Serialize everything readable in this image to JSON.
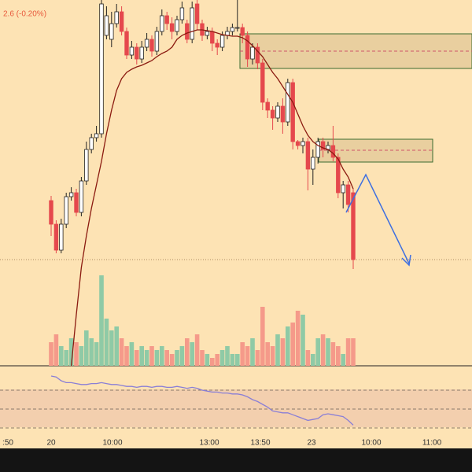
{
  "chart_data": {
    "type": "candlestick",
    "title": "2.6 (-0.20%)",
    "x_labels": [
      ":50",
      "20",
      "10:00",
      "13:00",
      "13:50",
      "23",
      "10:00",
      "11:00"
    ],
    "up_color": "#ffffff",
    "down_color": "#e5484d",
    "ma_color": "#8b1a10",
    "rsi_color": "#8a7fd6",
    "volume_up_color": "#8fcaa6",
    "volume_down_color": "#f59a8a",
    "ylim": [
      0,
      470
    ],
    "volume_ylim": [
      0,
      120
    ],
    "rsi_ylim": [
      0,
      100
    ],
    "rsi_lines": [
      30,
      50,
      70
    ],
    "open": [
      215,
      185,
      152,
      185,
      220,
      225,
      200,
      240,
      280,
      295,
      300,
      425,
      420,
      440,
      455,
      430,
      400,
      410,
      395,
      410,
      420,
      405,
      430,
      450,
      440,
      430,
      445,
      440,
      420,
      465,
      440,
      425,
      430,
      415,
      410,
      425,
      430,
      435,
      435,
      425,
      395,
      410,
      390,
      340,
      330,
      320,
      335,
      315,
      365,
      290,
      285,
      290,
      255,
      270,
      290,
      280,
      285,
      270,
      225,
      235,
      225
    ],
    "high": [
      221,
      190,
      192,
      225,
      232,
      230,
      245,
      290,
      300,
      310,
      470,
      462,
      455,
      465,
      462,
      435,
      418,
      415,
      418,
      428,
      425,
      436,
      458,
      455,
      448,
      450,
      468,
      445,
      468,
      470,
      445,
      436,
      435,
      420,
      430,
      436,
      440,
      470,
      440,
      430,
      415,
      415,
      395,
      345,
      335,
      340,
      345,
      370,
      370,
      292,
      295,
      295,
      280,
      295,
      295,
      290,
      310,
      275,
      240,
      240,
      230
    ],
    "low": [
      170,
      148,
      148,
      180,
      215,
      195,
      195,
      235,
      275,
      290,
      295,
      420,
      410,
      435,
      425,
      395,
      395,
      388,
      390,
      405,
      398,
      400,
      425,
      432,
      420,
      425,
      440,
      415,
      415,
      432,
      418,
      420,
      405,
      400,
      405,
      420,
      425,
      430,
      415,
      385,
      388,
      382,
      330,
      320,
      305,
      315,
      300,
      310,
      280,
      280,
      275,
      228,
      235,
      262,
      270,
      275,
      265,
      218,
      205,
      200,
      128
    ],
    "close": [
      185,
      152,
      185,
      220,
      225,
      200,
      240,
      280,
      295,
      300,
      465,
      450,
      440,
      455,
      430,
      400,
      410,
      395,
      410,
      420,
      405,
      430,
      450,
      440,
      430,
      445,
      460,
      420,
      460,
      440,
      425,
      430,
      415,
      410,
      425,
      430,
      435,
      435,
      425,
      395,
      410,
      390,
      340,
      330,
      320,
      335,
      315,
      365,
      290,
      285,
      290,
      255,
      270,
      290,
      280,
      285,
      270,
      225,
      235,
      210,
      140
    ],
    "ma": [
      null,
      null,
      null,
      null,
      5,
      70,
      130,
      170,
      205,
      235,
      265,
      300,
      330,
      355,
      370,
      378,
      382,
      385,
      387,
      390,
      393,
      398,
      402,
      405,
      410,
      420,
      425,
      428,
      430,
      432,
      432,
      431,
      430,
      428,
      426,
      425,
      424,
      424,
      422,
      418,
      412,
      405,
      398,
      388,
      378,
      370,
      360,
      350,
      340,
      325,
      310,
      298,
      290,
      285,
      282,
      280,
      275,
      268,
      255,
      245,
      230
    ],
    "volume": [
      30,
      40,
      25,
      20,
      35,
      30,
      25,
      45,
      35,
      30,
      115,
      60,
      45,
      50,
      35,
      25,
      30,
      20,
      25,
      20,
      25,
      20,
      25,
      20,
      15,
      20,
      25,
      35,
      30,
      40,
      20,
      15,
      10,
      15,
      20,
      25,
      15,
      15,
      30,
      25,
      35,
      20,
      75,
      30,
      25,
      40,
      35,
      50,
      55,
      70,
      65,
      20,
      15,
      35,
      40,
      35,
      30,
      25,
      15,
      35,
      35
    ],
    "rsi": [
      85,
      84,
      80,
      78,
      78,
      77,
      76,
      76,
      77,
      77,
      78,
      77,
      76,
      76,
      75,
      74,
      74,
      73,
      74,
      74,
      73,
      74,
      74,
      73,
      73,
      74,
      73,
      72,
      73,
      72,
      70,
      69,
      68,
      68,
      67,
      67,
      66,
      66,
      65,
      63,
      60,
      58,
      55,
      52,
      48,
      47,
      46,
      46,
      44,
      42,
      40,
      38,
      39,
      40,
      44,
      45,
      44,
      43,
      42,
      38,
      33
    ]
  }
}
